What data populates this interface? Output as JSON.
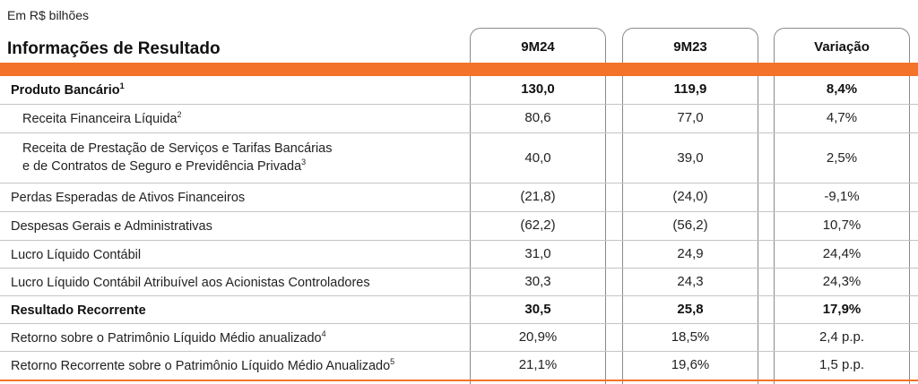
{
  "unit_label": "Em R$ bilhões",
  "title": "Informações de Resultado",
  "columns": [
    "9M24",
    "9M23",
    "Variação"
  ],
  "colors": {
    "accent": "#f27329",
    "rule": "#c4c4c4",
    "column_border": "#8a8a8a"
  },
  "rows": [
    {
      "label": "Produto Bancário",
      "sup": "1",
      "values": [
        "130,0",
        "119,9",
        "8,4%"
      ]
    },
    {
      "label": "Receita Financeira Líquida",
      "sup": "2",
      "values": [
        "80,6",
        "77,0",
        "4,7%"
      ]
    },
    {
      "label_line1": "Receita de Prestação de Serviços e Tarifas Bancárias",
      "label_line2": "e de Contratos de Seguro e Previdência Privada",
      "sup": "3",
      "values": [
        "40,0",
        "39,0",
        "2,5%"
      ]
    },
    {
      "label": "Perdas Esperadas de Ativos Financeiros",
      "values": [
        "(21,8)",
        "(24,0)",
        "-9,1%"
      ]
    },
    {
      "label": "Despesas Gerais e Administrativas",
      "values": [
        "(62,2)",
        "(56,2)",
        "10,7%"
      ]
    },
    {
      "label": "Lucro Líquido Contábil",
      "values": [
        "31,0",
        "24,9",
        "24,4%"
      ]
    },
    {
      "label": "Lucro Líquido Contábil Atribuível aos Acionistas Controladores",
      "values": [
        "30,3",
        "24,3",
        "24,3%"
      ]
    },
    {
      "label": "Resultado Recorrente",
      "values": [
        "30,5",
        "25,8",
        "17,9%"
      ]
    },
    {
      "label": "Retorno sobre o Patrimônio Líquido Médio anualizado",
      "sup": "4",
      "values": [
        "20,9%",
        "18,5%",
        "2,4 p.p."
      ]
    },
    {
      "label": "Retorno Recorrente sobre o Patrimônio Líquido Médio Anualizado",
      "sup": "5",
      "values": [
        "21,1%",
        "19,6%",
        "1,5 p.p."
      ]
    }
  ]
}
